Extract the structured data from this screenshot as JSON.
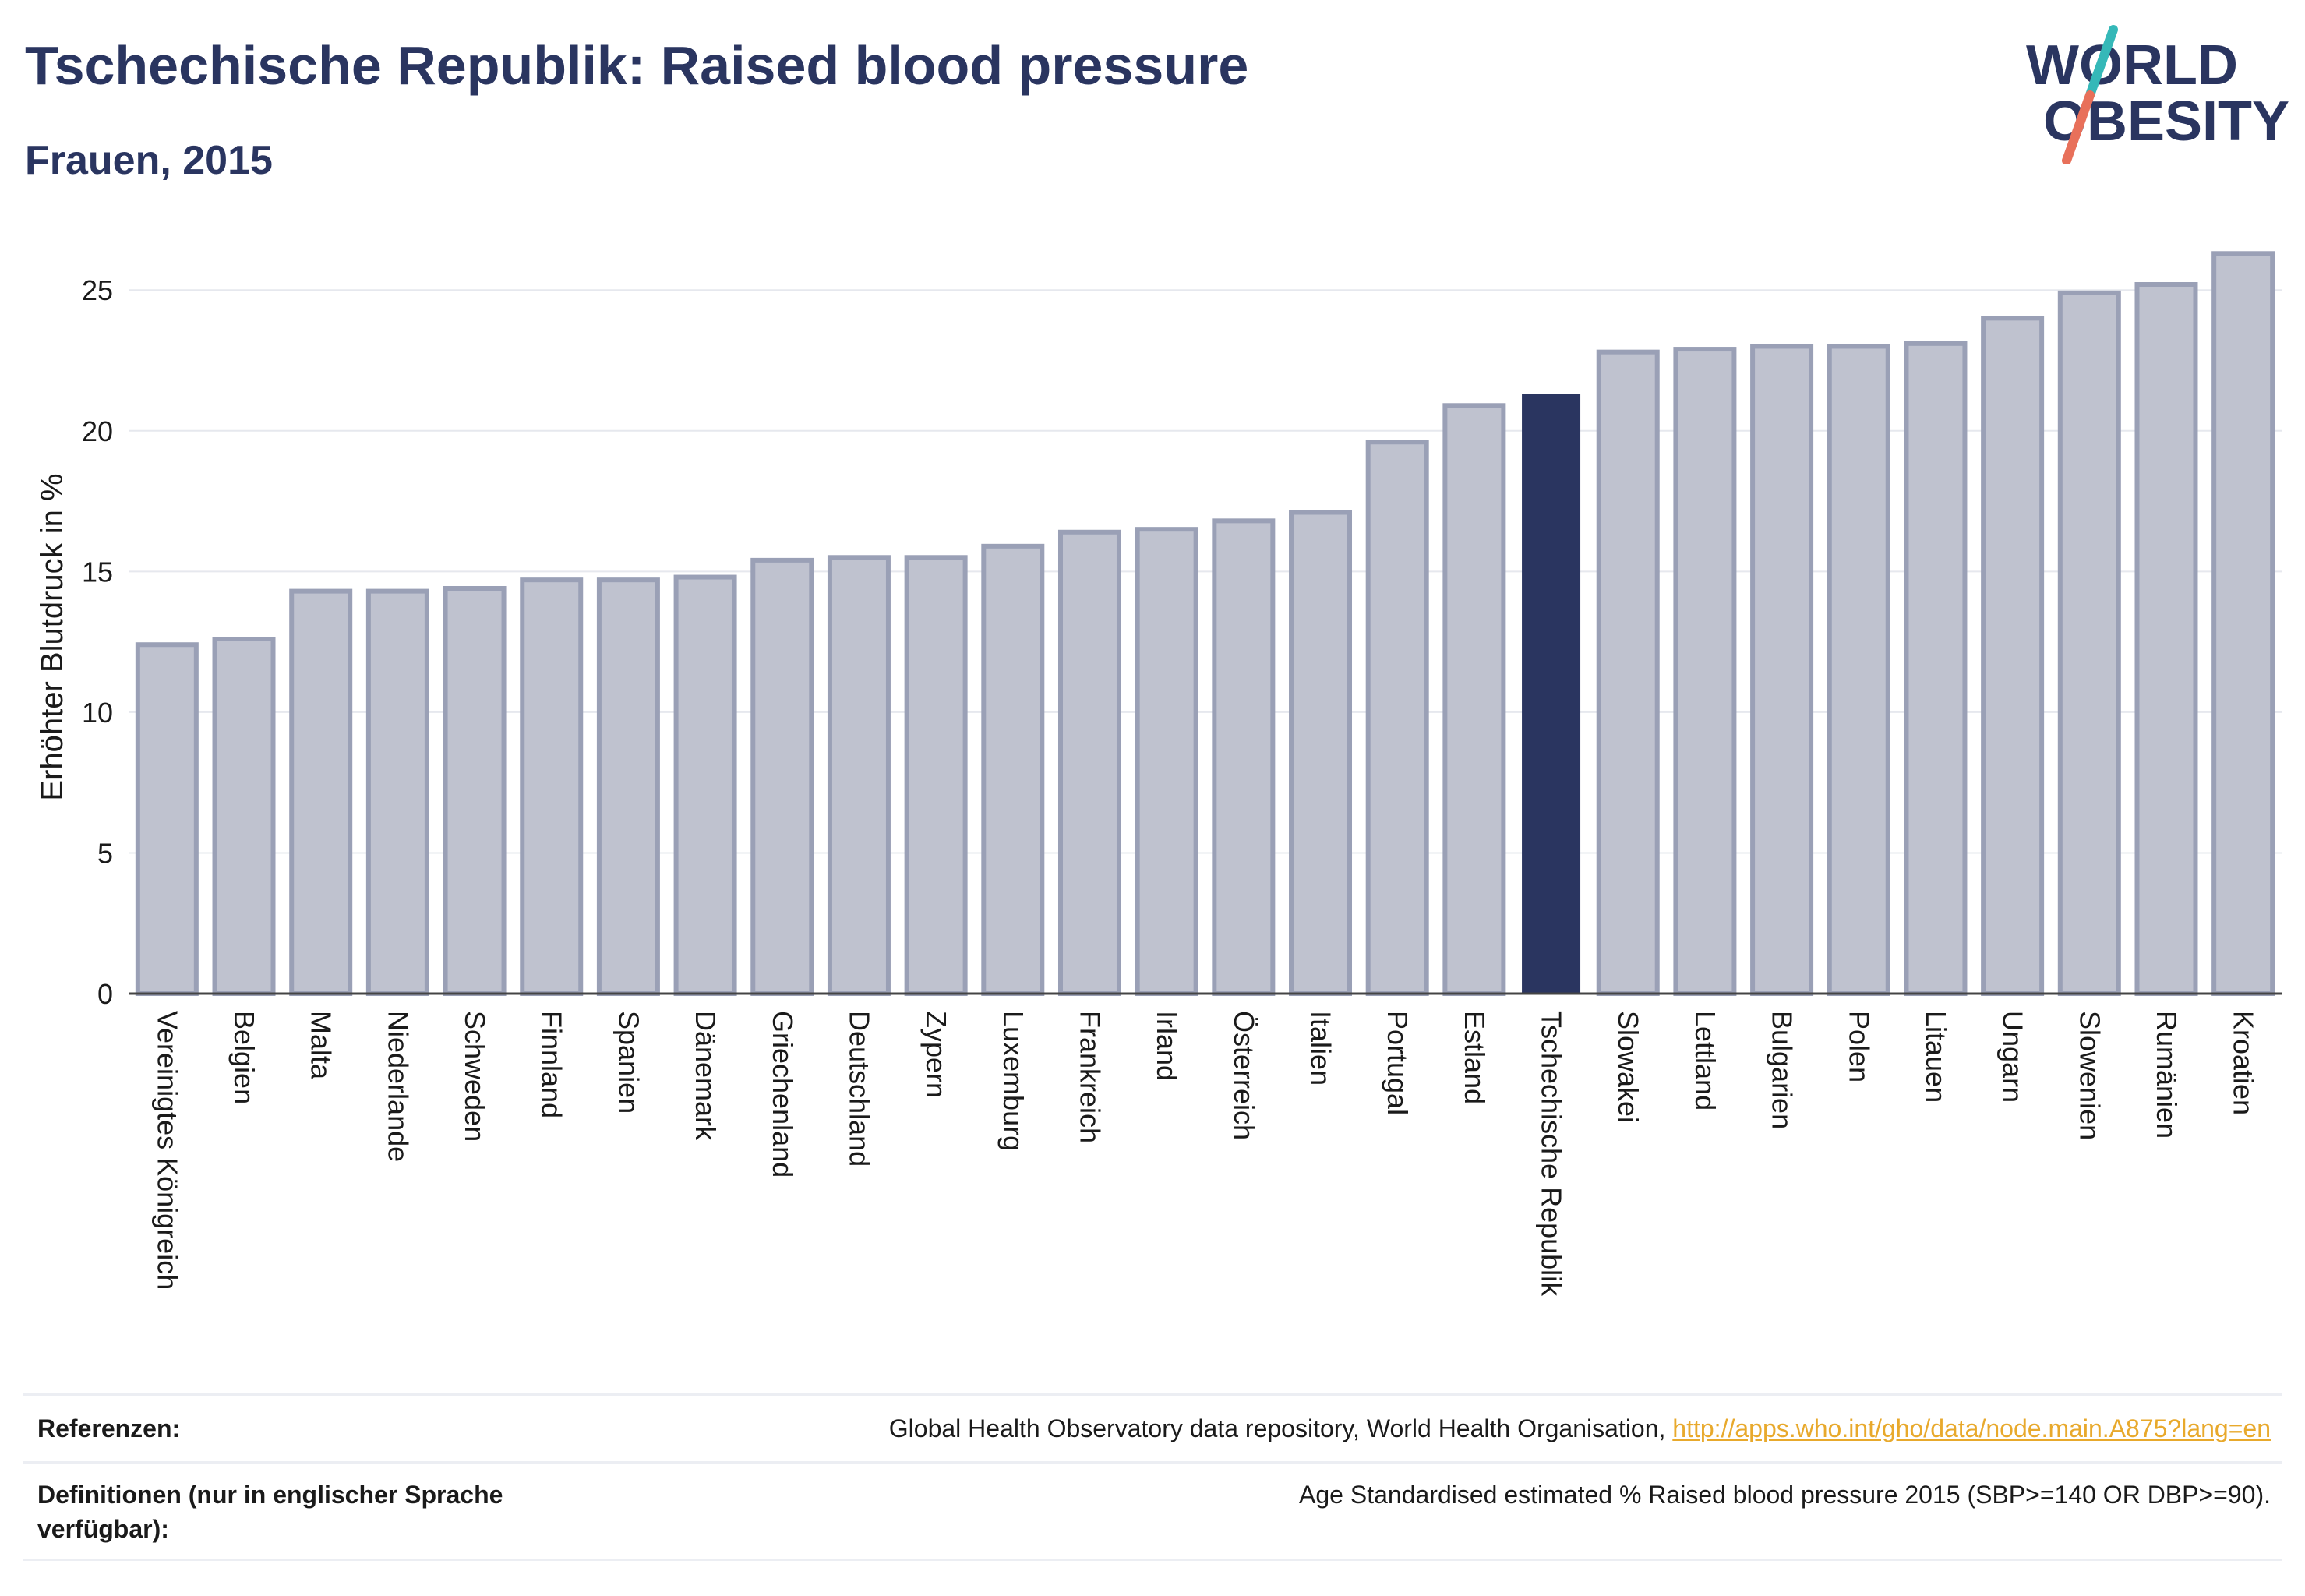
{
  "header": {
    "title": "Tschechische Republik: Raised blood pressure",
    "subtitle": "Frauen, 2015"
  },
  "logo": {
    "line1": "WORLD",
    "line2": "OBESITY",
    "slash_top_color": "#35b8b8",
    "slash_bottom_color": "#e8705a",
    "text_color": "#2a3560"
  },
  "chart_data": {
    "type": "bar",
    "ylabel": "Erhöhter Blutdruck in %",
    "ylim": [
      0,
      27
    ],
    "yticks": [
      0,
      5,
      10,
      15,
      20,
      25
    ],
    "grid": true,
    "highlight": "Tschechische Republik",
    "colors": {
      "bar": "#bfc2cf",
      "bar_edge": "#9aa0b6",
      "highlight": "#2a3560"
    },
    "categories": [
      "Vereinigtes Königreich",
      "Belgien",
      "Malta",
      "Niederlande",
      "Schweden",
      "Finnland",
      "Spanien",
      "Dänemark",
      "Griechenland",
      "Deutschland",
      "Zypern",
      "Luxemburg",
      "Frankreich",
      "Irland",
      "Österreich",
      "Italien",
      "Portugal",
      "Estland",
      "Tschechische Republik",
      "Slowakei",
      "Lettland",
      "Bulgarien",
      "Polen",
      "Litauen",
      "Ungarn",
      "Slowenien",
      "Rumänien",
      "Kroatien"
    ],
    "values": [
      12.4,
      12.6,
      14.3,
      14.3,
      14.4,
      14.7,
      14.7,
      14.8,
      15.4,
      15.5,
      15.5,
      15.9,
      16.4,
      16.5,
      16.8,
      17.1,
      19.6,
      20.9,
      21.3,
      22.8,
      22.9,
      23.0,
      23.0,
      23.1,
      24.0,
      24.9,
      25.2,
      26.3
    ]
  },
  "footer": {
    "references_label": "Referenzen:",
    "references_text": "Global Health Observatory data repository, World Health Organisation, ",
    "references_link": "http://apps.who.int/gho/data/node.main.A875?lang=en",
    "definitions_label": "Definitionen (nur in englischer Sprache verfügbar):",
    "definitions_text": "Age Standardised estimated % Raised blood pressure 2015 (SBP>=140 OR DBP>=90)."
  }
}
